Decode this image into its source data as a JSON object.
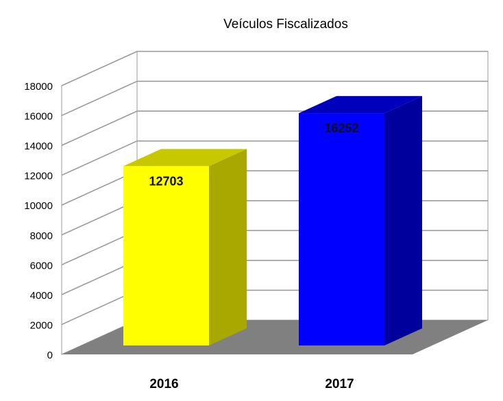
{
  "chart_data": {
    "type": "bar",
    "title": "Veículos Fiscalizados",
    "categories": [
      "2016",
      "2017"
    ],
    "values": [
      12703,
      16252
    ],
    "data_labels": [
      "12703",
      "16252"
    ],
    "ylim": [
      0,
      18000
    ],
    "yticks": [
      0,
      2000,
      4000,
      6000,
      8000,
      10000,
      12000,
      14000,
      16000,
      18000
    ],
    "ytick_labels": [
      "0",
      "2000",
      "4000",
      "6000",
      "8000",
      "10000",
      "12000",
      "14000",
      "16000",
      "18000"
    ],
    "xlabel": "",
    "ylabel": "",
    "grid": true,
    "style": "3d",
    "colors": {
      "bars": [
        "#ffff00",
        "#0000ff"
      ],
      "bar_sides": [
        "#a8a800",
        "#00009c"
      ],
      "bar_tops": [
        "#c8c800",
        "#0000bc"
      ],
      "floor": "#808080",
      "grid": "#9a9a9a"
    }
  }
}
